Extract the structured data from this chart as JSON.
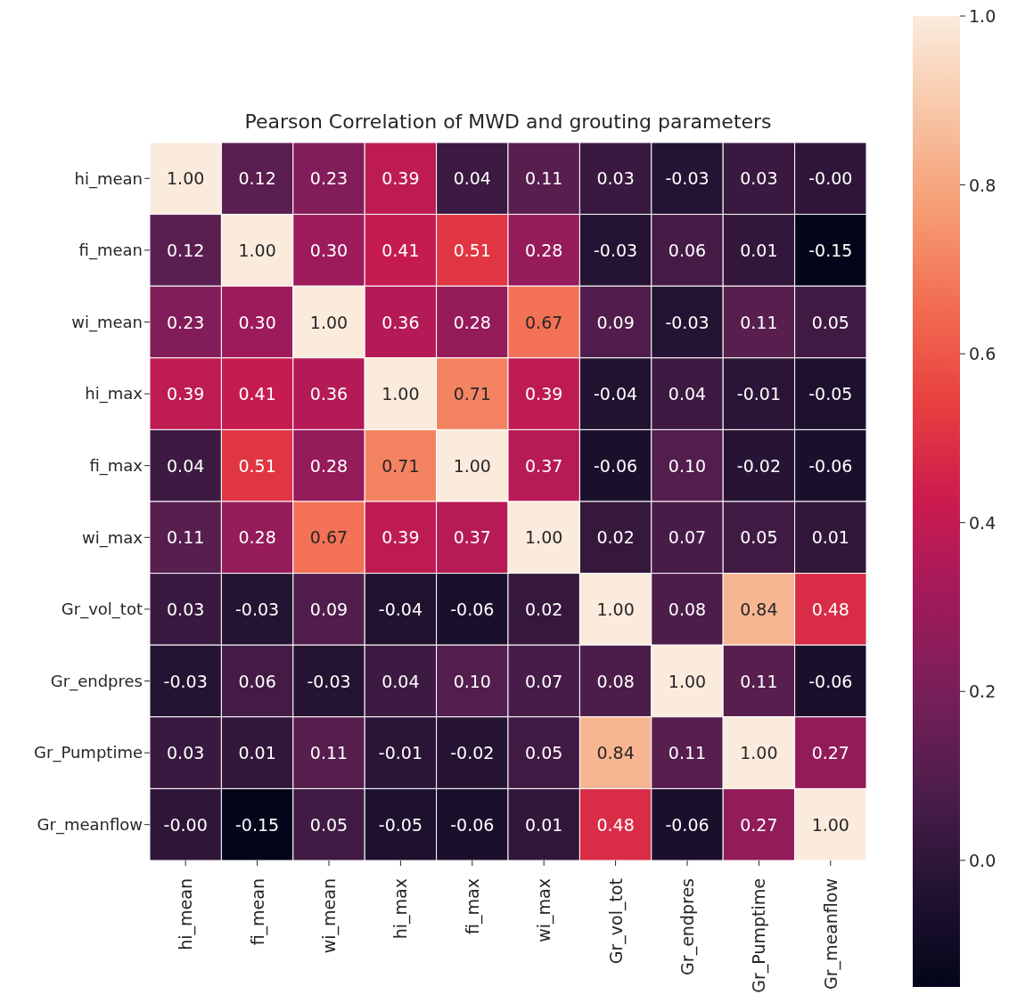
{
  "chart_data": {
    "type": "heatmap",
    "title": "Pearson Correlation of MWD and grouting parameters",
    "categories": [
      "hi_mean",
      "fi_mean",
      "wi_mean",
      "hi_max",
      "fi_max",
      "wi_max",
      "Gr_vol_tot",
      "Gr_endpres",
      "Gr_Pumptime",
      "Gr_meanflow"
    ],
    "y_categories": [
      "hi_mean",
      "fi_mean",
      "wi_mean",
      "hi_max",
      "fi_max",
      "wi_max",
      "Gr_vol_tot",
      "Gr_endpres",
      "Gr_Pumptime",
      "Gr_meanflow"
    ],
    "cells": [
      [
        1.0,
        0.12,
        0.23,
        0.39,
        0.04,
        0.11,
        0.03,
        -0.03,
        0.03,
        0
      ],
      [
        0.12,
        1.0,
        0.3,
        0.41,
        0.51,
        0.28,
        -0.03,
        0.06,
        0.01,
        -0.15
      ],
      [
        0.23,
        0.3,
        1.0,
        0.36,
        0.28,
        0.67,
        0.09,
        -0.03,
        0.11,
        0.05
      ],
      [
        0.39,
        0.41,
        0.36,
        1.0,
        0.71,
        0.39,
        -0.04,
        0.04,
        -0.01,
        -0.05
      ],
      [
        0.04,
        0.51,
        0.28,
        0.71,
        1.0,
        0.37,
        -0.06,
        0.1,
        -0.02,
        -0.06
      ],
      [
        0.11,
        0.28,
        0.67,
        0.39,
        0.37,
        1.0,
        0.02,
        0.07,
        0.05,
        0.01
      ],
      [
        0.03,
        -0.03,
        0.09,
        -0.04,
        -0.06,
        0.02,
        1.0,
        0.08,
        0.84,
        0.48
      ],
      [
        -0.03,
        0.06,
        -0.03,
        0.04,
        0.1,
        0.07,
        0.08,
        1.0,
        0.11,
        -0.06
      ],
      [
        0.03,
        0.01,
        0.11,
        -0.01,
        -0.02,
        0.05,
        0.84,
        0.11,
        1.0,
        0.27
      ],
      [
        0,
        -0.15,
        0.05,
        -0.05,
        -0.06,
        0.01,
        0.48,
        -0.06,
        0.27,
        1.0
      ]
    ],
    "cell_labels": [
      [
        "1.00",
        "0.12",
        "0.23",
        "0.39",
        "0.04",
        "0.11",
        "0.03",
        "-0.03",
        "0.03",
        "-0.00"
      ],
      [
        "0.12",
        "1.00",
        "0.30",
        "0.41",
        "0.51",
        "0.28",
        "-0.03",
        "0.06",
        "0.01",
        "-0.15"
      ],
      [
        "0.23",
        "0.30",
        "1.00",
        "0.36",
        "0.28",
        "0.67",
        "0.09",
        "-0.03",
        "0.11",
        "0.05"
      ],
      [
        "0.39",
        "0.41",
        "0.36",
        "1.00",
        "0.71",
        "0.39",
        "-0.04",
        "0.04",
        "-0.01",
        "-0.05"
      ],
      [
        "0.04",
        "0.51",
        "0.28",
        "0.71",
        "1.00",
        "0.37",
        "-0.06",
        "0.10",
        "-0.02",
        "-0.06"
      ],
      [
        "0.11",
        "0.28",
        "0.67",
        "0.39",
        "0.37",
        "1.00",
        "0.02",
        "0.07",
        "0.05",
        "0.01"
      ],
      [
        "0.03",
        "-0.03",
        "0.09",
        "-0.04",
        "-0.06",
        "0.02",
        "1.00",
        "0.08",
        "0.84",
        "0.48"
      ],
      [
        "-0.03",
        "0.06",
        "-0.03",
        "0.04",
        "0.10",
        "0.07",
        "0.08",
        "1.00",
        "0.11",
        "-0.06"
      ],
      [
        "0.03",
        "0.01",
        "0.11",
        "-0.01",
        "-0.02",
        "0.05",
        "0.84",
        "0.11",
        "1.00",
        "0.27"
      ],
      [
        "-0.00",
        "-0.15",
        "0.05",
        "-0.05",
        "-0.06",
        "0.01",
        "0.48",
        "-0.06",
        "0.27",
        "1.00"
      ]
    ],
    "clim": [
      -0.15,
      1.0
    ],
    "cticks": [
      {
        "value": 0,
        "label": "0.0"
      },
      {
        "value": 0.2,
        "label": "0.2"
      },
      {
        "value": 0.4,
        "label": "0.4"
      },
      {
        "value": 0.6,
        "label": "0.6"
      },
      {
        "value": 0.8,
        "label": "0.8"
      },
      {
        "value": 1,
        "label": "1.0"
      }
    ]
  }
}
